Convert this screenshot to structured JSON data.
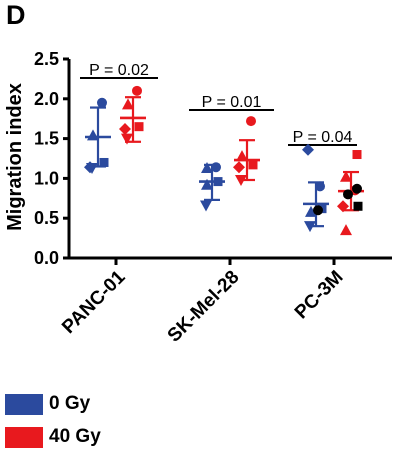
{
  "panel_label": "D",
  "chart_data": {
    "type": "scatter",
    "ylabel": "Migration index",
    "ylim": [
      0,
      2.5
    ],
    "yticks": [
      "0.0",
      "0.5",
      "1.0",
      "1.5",
      "2.0",
      "2.5"
    ],
    "categories": [
      "PANC-01",
      "SK-Mel-28",
      "PC-3M"
    ],
    "legend": [
      {
        "label": "0 Gy",
        "color": "#2b4a9e"
      },
      {
        "label": "40 Gy",
        "color": "#e8191e"
      }
    ],
    "colors": {
      "0 Gy": "#2b4a9e",
      "40 Gy": "#e8191e",
      "extra_points": "#000000"
    },
    "annotations": [
      "P = 0.02",
      "P = 0.01",
      "P = 0.04"
    ],
    "series": [
      {
        "name": "0 Gy",
        "groups": [
          {
            "category": "PANC-01",
            "mean": 1.52,
            "sd_low": 1.15,
            "sd_high": 1.89,
            "points": [
              {
                "y": 1.95,
                "marker": "circle"
              },
              {
                "y": 1.54,
                "marker": "triangle-up"
              },
              {
                "y": 1.2,
                "marker": "square"
              },
              {
                "y": 1.14,
                "marker": "diamond"
              },
              {
                "y": 1.13,
                "marker": "triangle-down"
              }
            ]
          },
          {
            "category": "SK-Mel-28",
            "mean": 0.96,
            "sd_low": 0.73,
            "sd_high": 1.17,
            "points": [
              {
                "y": 1.14,
                "marker": "circle"
              },
              {
                "y": 1.13,
                "marker": "triangle-up"
              },
              {
                "y": 0.96,
                "marker": "square"
              },
              {
                "y": 0.92,
                "marker": "triangle-up"
              },
              {
                "y": 0.66,
                "marker": "triangle-down"
              }
            ]
          },
          {
            "category": "PC-3M",
            "mean": 0.68,
            "sd_low": 0.4,
            "sd_high": 0.95,
            "points": [
              {
                "y": 1.36,
                "marker": "diamond"
              },
              {
                "y": 0.9,
                "marker": "circle"
              },
              {
                "y": 0.62,
                "marker": "square"
              },
              {
                "y": 0.58,
                "marker": "triangle-up"
              },
              {
                "y": 0.4,
                "marker": "triangle-down"
              }
            ]
          }
        ]
      },
      {
        "name": "40 Gy",
        "groups": [
          {
            "category": "PANC-01",
            "mean": 1.76,
            "sd_low": 1.46,
            "sd_high": 2.02,
            "points": [
              {
                "y": 2.1,
                "marker": "circle"
              },
              {
                "y": 1.93,
                "marker": "triangle-up"
              },
              {
                "y": 1.65,
                "marker": "square"
              },
              {
                "y": 1.62,
                "marker": "diamond"
              },
              {
                "y": 1.5,
                "marker": "triangle-down"
              }
            ]
          },
          {
            "category": "SK-Mel-28",
            "mean": 1.23,
            "sd_low": 0.98,
            "sd_high": 1.48,
            "points": [
              {
                "y": 1.72,
                "marker": "circle"
              },
              {
                "y": 1.28,
                "marker": "triangle-up"
              },
              {
                "y": 1.17,
                "marker": "square"
              },
              {
                "y": 1.14,
                "marker": "diamond"
              },
              {
                "y": 0.98,
                "marker": "triangle-down"
              }
            ]
          },
          {
            "category": "PC-3M",
            "mean": 0.84,
            "sd_low": 0.6,
            "sd_high": 1.08,
            "points": [
              {
                "y": 1.3,
                "marker": "square"
              },
              {
                "y": 1.02,
                "marker": "triangle-up"
              },
              {
                "y": 0.85,
                "marker": "circle"
              },
              {
                "y": 0.65,
                "marker": "diamond"
              },
              {
                "y": 0.35,
                "marker": "triangle-up"
              }
            ]
          }
        ]
      }
    ],
    "extra_points": [
      {
        "category": "PC-3M",
        "group": "0 Gy",
        "y": 0.6,
        "marker": "circle"
      },
      {
        "category": "PC-3M",
        "group": "40 Gy",
        "y": 0.87,
        "marker": "circle"
      },
      {
        "category": "PC-3M",
        "group": "40 Gy",
        "y": 0.8,
        "marker": "circle"
      },
      {
        "category": "PC-3M",
        "group": "40 Gy",
        "y": 0.65,
        "marker": "square"
      }
    ]
  }
}
